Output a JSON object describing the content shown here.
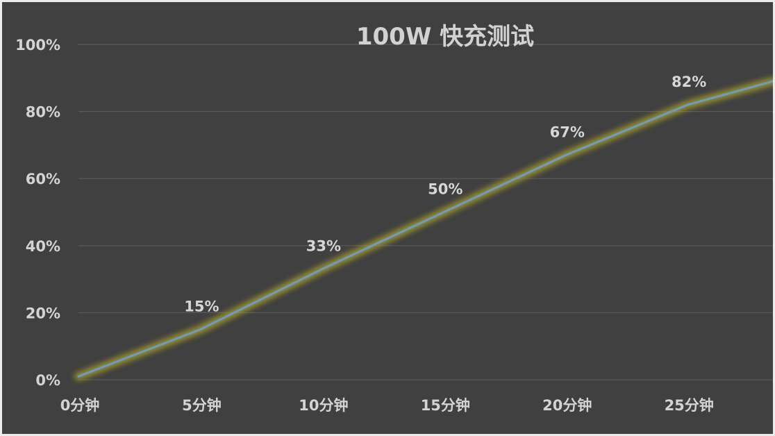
{
  "chart_data": {
    "type": "line",
    "title": "100W 快充测试",
    "x_tick_labels": [
      "0分钟",
      "5分钟",
      "10分钟",
      "15分钟",
      "20分钟",
      "25分钟"
    ],
    "y_tick_labels": [
      "0%",
      "20%",
      "40%",
      "60%",
      "80%",
      "100%"
    ],
    "x_ticks": [
      0,
      5,
      10,
      15,
      20,
      25
    ],
    "y_ticks": [
      0,
      20,
      40,
      60,
      80,
      100
    ],
    "xlim": [
      0,
      28.5
    ],
    "ylim": [
      0,
      100
    ],
    "grid": true,
    "series": [
      {
        "color": "#6a9cc6",
        "glow_color": "#a39a2a",
        "x": [
          0,
          5,
          10,
          15,
          20,
          25,
          28.5
        ],
        "values": [
          1,
          15,
          33,
          50,
          67,
          82,
          89
        ]
      }
    ],
    "data_labels": [
      {
        "x": 5,
        "y": 15,
        "text": "15%"
      },
      {
        "x": 10,
        "y": 33,
        "text": "33%"
      },
      {
        "x": 15,
        "y": 50,
        "text": "50%"
      },
      {
        "x": 20,
        "y": 67,
        "text": "67%"
      },
      {
        "x": 25,
        "y": 82,
        "text": "82%"
      }
    ]
  },
  "colors": {
    "background": "#404040",
    "gridline": "#5a5a5a",
    "text": "#d4d4d4"
  }
}
